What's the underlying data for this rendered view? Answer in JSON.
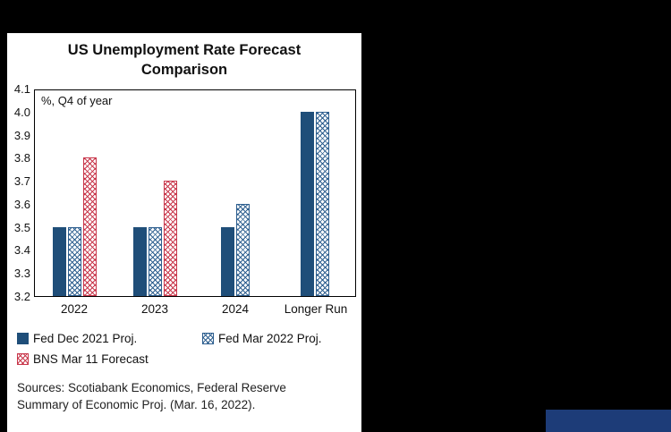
{
  "window": {
    "background_color": "#000000",
    "corner_box_color": "#1d3c78"
  },
  "chart": {
    "title_line1": "US Unemployment Rate Forecast",
    "title_line2": "Comparison",
    "annotation": "%, Q4 of year",
    "sources_line1": "Sources: Scotiabank Economics, Federal Reserve",
    "sources_line2": "Summary of Economic Proj. (Mar. 16, 2022)."
  },
  "chart_data": {
    "type": "bar",
    "title": "US Unemployment Rate Forecast Comparison",
    "annotation": "%, Q4 of year",
    "categories": [
      "2022",
      "2023",
      "2024",
      "Longer Run"
    ],
    "series": [
      {
        "name": "Fed Dec 2021 Proj.",
        "style": "solid",
        "color": "#1f4e79",
        "values": [
          3.5,
          3.5,
          3.5,
          4.0
        ]
      },
      {
        "name": "Fed Mar 2022 Proj.",
        "style": "crosshatch",
        "color": "#2e5f8f",
        "values": [
          3.5,
          3.5,
          3.6,
          4.0
        ]
      },
      {
        "name": "BNS Mar 11 Forecast",
        "style": "crosshatch",
        "color": "#c8374b",
        "values": [
          3.8,
          3.7,
          null,
          null
        ]
      }
    ],
    "ylim": [
      3.2,
      4.1
    ],
    "ytick_step": 0.1,
    "grid": false,
    "legend_position": "bottom",
    "sources": "Sources: Scotiabank Economics, Federal Reserve Summary of Economic Proj. (Mar. 16, 2022)."
  }
}
